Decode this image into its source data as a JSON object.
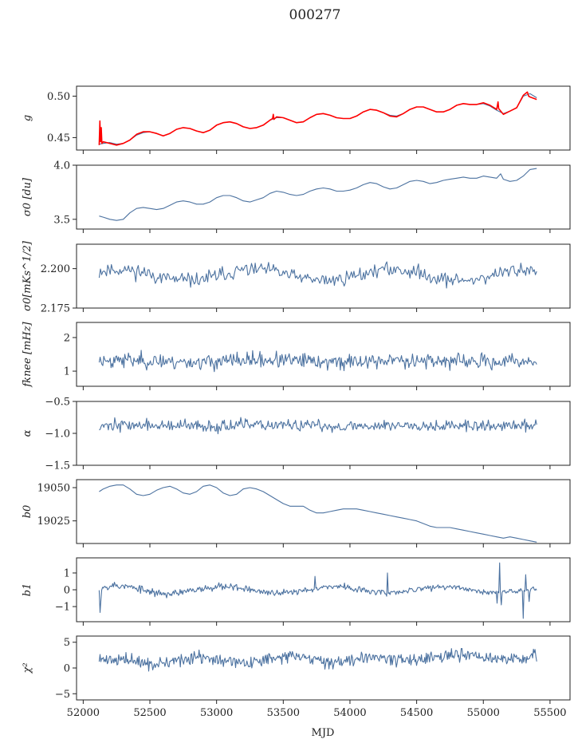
{
  "figure": {
    "title": "000277"
  },
  "chart_data": {
    "type": "line",
    "title": "000277",
    "xlabel": "MJD",
    "xlim": [
      51950,
      55650
    ],
    "xticks": [
      52000,
      52500,
      53000,
      53500,
      54000,
      54500,
      55000,
      55500
    ],
    "series_color": "#4c72a0",
    "overlay_color": "#ff0000",
    "panels": [
      {
        "id": "g",
        "ylabel": "g",
        "ylim": [
          0.435,
          0.512
        ],
        "yticks": [
          0.45,
          0.5
        ],
        "ytick_labels": [
          "0.45",
          "0.50"
        ],
        "series": [
          {
            "x": [
              52120,
              52150,
              52200,
              52250,
              52300,
              52350,
              52400,
              52450,
              52500,
              52550,
              52600,
              52650,
              52700,
              52750,
              52800,
              52850,
              52900,
              52950,
              53000,
              53050,
              53100,
              53150,
              53200,
              53250,
              53300,
              53350,
              53400,
              53450,
              53500,
              53550,
              53600,
              53650,
              53700,
              53750,
              53800,
              53850,
              53900,
              53950,
              54000,
              54050,
              54100,
              54150,
              54200,
              54250,
              54300,
              54350,
              54400,
              54450,
              54500,
              54550,
              54600,
              54650,
              54700,
              54750,
              54800,
              54850,
              54900,
              54950,
              55000,
              55050,
              55100,
              55150,
              55200,
              55250,
              55300,
              55350,
              55400
            ],
            "y": [
              0.442,
              0.443,
              0.444,
              0.442,
              0.443,
              0.447,
              0.453,
              0.456,
              0.457,
              0.455,
              0.452,
              0.455,
              0.46,
              0.462,
              0.461,
              0.458,
              0.456,
              0.459,
              0.465,
              0.468,
              0.469,
              0.467,
              0.463,
              0.461,
              0.462,
              0.465,
              0.471,
              0.474,
              0.474,
              0.471,
              0.468,
              0.469,
              0.474,
              0.478,
              0.479,
              0.477,
              0.474,
              0.473,
              0.473,
              0.476,
              0.481,
              0.484,
              0.483,
              0.48,
              0.477,
              0.476,
              0.479,
              0.484,
              0.487,
              0.487,
              0.484,
              0.481,
              0.481,
              0.484,
              0.489,
              0.491,
              0.49,
              0.49,
              0.491,
              0.488,
              0.483,
              0.479,
              0.482,
              0.486,
              0.5,
              0.503,
              0.498
            ]
          },
          {
            "x": [
              52120,
              52125,
              52130,
              52135,
              52140,
              52150,
              52200,
              52250,
              52300,
              52350,
              52400,
              52450,
              52500,
              52550,
              52600,
              52650,
              52700,
              52750,
              52800,
              52850,
              52900,
              52950,
              53000,
              53050,
              53100,
              53150,
              53200,
              53250,
              53300,
              53350,
              53400,
              53420,
              53425,
              53430,
              53450,
              53500,
              53550,
              53600,
              53650,
              53700,
              53750,
              53800,
              53850,
              53900,
              53950,
              54000,
              54050,
              54100,
              54150,
              54200,
              54250,
              54300,
              54350,
              54400,
              54450,
              54500,
              54550,
              54600,
              54650,
              54700,
              54750,
              54800,
              54850,
              54900,
              54950,
              55000,
              55050,
              55100,
              55110,
              55115,
              55150,
              55200,
              55250,
              55300,
              55330,
              55340,
              55350,
              55400
            ],
            "y": [
              0.441,
              0.47,
              0.445,
              0.462,
              0.443,
              0.445,
              0.443,
              0.441,
              0.443,
              0.447,
              0.454,
              0.457,
              0.457,
              0.455,
              0.452,
              0.455,
              0.46,
              0.462,
              0.461,
              0.458,
              0.456,
              0.459,
              0.465,
              0.468,
              0.469,
              0.467,
              0.463,
              0.461,
              0.462,
              0.465,
              0.471,
              0.473,
              0.478,
              0.472,
              0.475,
              0.474,
              0.471,
              0.468,
              0.469,
              0.474,
              0.478,
              0.479,
              0.477,
              0.474,
              0.473,
              0.473,
              0.476,
              0.481,
              0.484,
              0.483,
              0.48,
              0.476,
              0.475,
              0.479,
              0.484,
              0.487,
              0.487,
              0.484,
              0.481,
              0.481,
              0.484,
              0.489,
              0.491,
              0.49,
              0.49,
              0.492,
              0.489,
              0.484,
              0.493,
              0.485,
              0.478,
              0.482,
              0.486,
              0.501,
              0.505,
              0.5,
              0.499,
              0.496
            ]
          }
        ]
      },
      {
        "id": "sigma0",
        "ylabel": "σ0 [du]",
        "ylim": [
          3.41,
          4.0
        ],
        "yticks": [
          3.5,
          4.0
        ],
        "ytick_labels": [
          "3.5",
          "4.0"
        ],
        "series": [
          {
            "x": [
              52120,
              52150,
              52200,
              52250,
              52300,
              52350,
              52400,
              52450,
              52500,
              52550,
              52600,
              52650,
              52700,
              52750,
              52800,
              52850,
              52900,
              52950,
              53000,
              53050,
              53100,
              53150,
              53200,
              53250,
              53300,
              53350,
              53400,
              53450,
              53500,
              53550,
              53600,
              53650,
              53700,
              53750,
              53800,
              53850,
              53900,
              53950,
              54000,
              54050,
              54100,
              54150,
              54200,
              54250,
              54300,
              54350,
              54400,
              54450,
              54500,
              54550,
              54600,
              54650,
              54700,
              54750,
              54800,
              54850,
              54900,
              54950,
              55000,
              55050,
              55100,
              55130,
              55150,
              55200,
              55250,
              55300,
              55350,
              55400
            ],
            "y": [
              3.53,
              3.52,
              3.5,
              3.49,
              3.5,
              3.56,
              3.6,
              3.61,
              3.6,
              3.59,
              3.6,
              3.63,
              3.66,
              3.67,
              3.66,
              3.64,
              3.64,
              3.66,
              3.7,
              3.72,
              3.72,
              3.7,
              3.67,
              3.66,
              3.68,
              3.7,
              3.74,
              3.76,
              3.75,
              3.73,
              3.72,
              3.73,
              3.76,
              3.78,
              3.79,
              3.78,
              3.76,
              3.76,
              3.77,
              3.79,
              3.82,
              3.84,
              3.83,
              3.8,
              3.78,
              3.79,
              3.82,
              3.85,
              3.86,
              3.85,
              3.83,
              3.84,
              3.86,
              3.87,
              3.88,
              3.89,
              3.88,
              3.88,
              3.9,
              3.89,
              3.88,
              3.92,
              3.87,
              3.85,
              3.86,
              3.9,
              3.96,
              3.97
            ]
          }
        ]
      },
      {
        "id": "sigma0k",
        "ylabel": "σ0[mKs^1/2]",
        "ylim": [
          2.175,
          2.2155
        ],
        "yticks": [
          2.175,
          2.2
        ],
        "ytick_labels": [
          "2.175",
          "2.200"
        ],
        "series": [
          {
            "gen": {
              "seed": 11,
              "n": 360,
              "x0": 52120,
              "x1": 55400,
              "base": 2.196,
              "amp": 0.0035,
              "noise": 0.0032,
              "waves": 3.2
            }
          }
        ]
      },
      {
        "id": "fknee",
        "ylabel": "fknee [mHz]",
        "ylim": [
          0.55,
          2.45
        ],
        "yticks": [
          1,
          2
        ],
        "ytick_labels": [
          "1",
          "2"
        ],
        "series": [
          {
            "gen": {
              "seed": 23,
              "n": 480,
              "x0": 52120,
              "x1": 55400,
              "base": 1.3,
              "amp": 0.03,
              "noise": 0.16,
              "waves": 3
            }
          }
        ]
      },
      {
        "id": "alpha",
        "ylabel": "α",
        "ylim": [
          -1.5,
          -0.5
        ],
        "yticks": [
          -1.5,
          -1.0,
          -0.5
        ],
        "ytick_labels": [
          "−1.5",
          "−1.0",
          "−0.5"
        ],
        "series": [
          {
            "gen": {
              "seed": 37,
              "n": 480,
              "x0": 52120,
              "x1": 55400,
              "base": -0.88,
              "amp": 0.01,
              "noise": 0.065,
              "waves": 3
            }
          }
        ]
      },
      {
        "id": "b0",
        "ylabel": "b0",
        "ylim": [
          19008,
          19056
        ],
        "yticks": [
          19025,
          19050
        ],
        "ytick_labels": [
          "19025",
          "19050"
        ],
        "series": [
          {
            "x": [
              52120,
              52150,
              52200,
              52250,
              52300,
              52350,
              52400,
              52450,
              52500,
              52550,
              52600,
              52650,
              52700,
              52750,
              52800,
              52850,
              52900,
              52950,
              53000,
              53050,
              53100,
              53150,
              53200,
              53250,
              53300,
              53350,
              53400,
              53450,
              53500,
              53550,
              53600,
              53650,
              53700,
              53750,
              53800,
              53850,
              53900,
              53950,
              54000,
              54050,
              54100,
              54150,
              54200,
              54250,
              54300,
              54350,
              54400,
              54450,
              54500,
              54550,
              54600,
              54650,
              54700,
              54750,
              54800,
              54850,
              54900,
              54950,
              55000,
              55050,
              55100,
              55150,
              55200,
              55250,
              55300,
              55350,
              55400
            ],
            "y": [
              19047,
              19049,
              19051,
              19052,
              19052,
              19049,
              19045,
              19044,
              19045,
              19048,
              19050,
              19051,
              19049,
              19046,
              19045,
              19047,
              19051,
              19052,
              19050,
              19046,
              19044,
              19045,
              19049,
              19050,
              19049,
              19047,
              19044,
              19041,
              19038,
              19036,
              19036,
              19036,
              19033,
              19031,
              19031,
              19032,
              19033,
              19034,
              19034,
              19034,
              19033,
              19032,
              19031,
              19030,
              19029,
              19028,
              19027,
              19026,
              19025,
              19023,
              19021,
              19020,
              19020,
              19020,
              19019,
              19018,
              19017,
              19016,
              19015,
              19014,
              19013,
              19012,
              19013,
              19012,
              19011,
              19010,
              19009
            ]
          }
        ]
      },
      {
        "id": "b1",
        "ylabel": "b1",
        "ylim": [
          -1.9,
          1.9
        ],
        "yticks": [
          -1,
          0,
          1
        ],
        "ytick_labels": [
          "−1",
          "0",
          "1"
        ],
        "series": [
          {
            "gen": {
              "seed": 53,
              "n": 520,
              "x0": 52120,
              "x1": 55400,
              "base": 0.0,
              "amp": 0.25,
              "noise": 0.17,
              "waves": 4,
              "decay": 0.4,
              "spikes": [
                [
                  52125,
                  -1.35
                ],
                [
                  52130,
                  -0.6
                ],
                [
                  53740,
                  0.8
                ],
                [
                  54280,
                  1.0
                ],
                [
                  55100,
                  -0.8
                ],
                [
                  55120,
                  1.6
                ],
                [
                  55135,
                  -0.9
                ],
                [
                  55300,
                  -1.7
                ],
                [
                  55320,
                  0.9
                ],
                [
                  55340,
                  -0.7
                ]
              ]
            }
          }
        ]
      },
      {
        "id": "chi2",
        "ylabel": "χ²",
        "ylim": [
          -6.2,
          6.2
        ],
        "yticks": [
          -5,
          0,
          5
        ],
        "ytick_labels": [
          "−5",
          "0",
          "5"
        ],
        "series": [
          {
            "gen": {
              "seed": 71,
              "n": 540,
              "x0": 52120,
              "x1": 55400,
              "base": 1.2,
              "amp": 0.5,
              "noise": 0.85,
              "waves": 5,
              "trend": 1.0
            }
          }
        ]
      }
    ]
  }
}
